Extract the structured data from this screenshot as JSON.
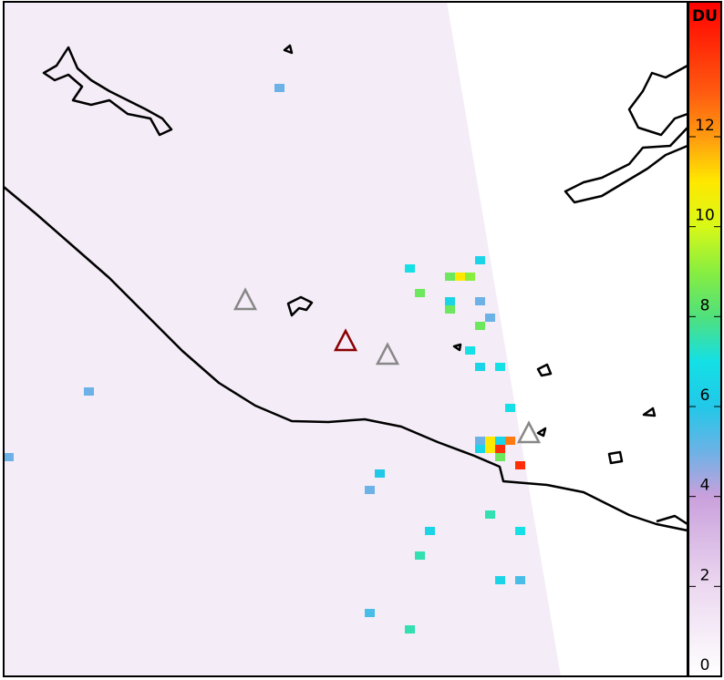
{
  "chart_data": {
    "type": "heatmap",
    "colorbar_label": "DU",
    "ylim": [
      0,
      15
    ],
    "yticks": [
      0,
      2,
      4,
      6,
      8,
      10,
      12
    ],
    "colorscale": [
      {
        "value": 0,
        "color": "#ffffff"
      },
      {
        "value": 2,
        "color": "#ecd8f0"
      },
      {
        "value": 4,
        "color": "#c9a0dc"
      },
      {
        "value": 5,
        "color": "#6cb2e6"
      },
      {
        "value": 6,
        "color": "#22c8e8"
      },
      {
        "value": 7,
        "color": "#14e0e6"
      },
      {
        "value": 8,
        "color": "#50e07c"
      },
      {
        "value": 9,
        "color": "#88ee40"
      },
      {
        "value": 10,
        "color": "#d8f818"
      },
      {
        "value": 11,
        "color": "#ffe800"
      },
      {
        "value": 12,
        "color": "#ff9a10"
      },
      {
        "value": 13,
        "color": "#ff5a10"
      },
      {
        "value": 15,
        "color": "#ff0000"
      }
    ],
    "cells": [
      {
        "col": 47,
        "row": 53,
        "value": 5
      },
      {
        "col": 48,
        "row": 53,
        "value": 11
      },
      {
        "col": 49,
        "row": 53,
        "value": 6.5
      },
      {
        "col": 50,
        "row": 53,
        "value": 12.5
      },
      {
        "col": 47,
        "row": 54,
        "value": 6.5
      },
      {
        "col": 48,
        "row": 54,
        "value": 11
      },
      {
        "col": 49,
        "row": 54,
        "value": 14
      },
      {
        "col": 49,
        "row": 55,
        "value": 8.5
      },
      {
        "col": 51,
        "row": 56,
        "value": 14
      },
      {
        "col": 40,
        "row": 32,
        "value": 7
      },
      {
        "col": 44,
        "row": 33,
        "value": 8.5
      },
      {
        "col": 45,
        "row": 33,
        "value": 11
      },
      {
        "col": 46,
        "row": 33,
        "value": 9
      },
      {
        "col": 47,
        "row": 31,
        "value": 6.5
      },
      {
        "col": 41,
        "row": 35,
        "value": 8.5
      },
      {
        "col": 44,
        "row": 36,
        "value": 6.5
      },
      {
        "col": 44,
        "row": 37,
        "value": 8.5
      },
      {
        "col": 47,
        "row": 36,
        "value": 5
      },
      {
        "col": 48,
        "row": 38,
        "value": 5
      },
      {
        "col": 47,
        "row": 39,
        "value": 8.5
      },
      {
        "col": 46,
        "row": 42,
        "value": 7
      },
      {
        "col": 47,
        "row": 44,
        "value": 6.5
      },
      {
        "col": 49,
        "row": 44,
        "value": 7
      },
      {
        "col": 50,
        "row": 49,
        "value": 7
      },
      {
        "col": 8,
        "row": 47,
        "value": 5
      },
      {
        "col": 0,
        "row": 55,
        "value": 5
      },
      {
        "col": 27,
        "row": 10,
        "value": 5
      },
      {
        "col": 41,
        "row": 67,
        "value": 7.5
      },
      {
        "col": 42,
        "row": 64,
        "value": 6.5
      },
      {
        "col": 40,
        "row": 76,
        "value": 7.5
      },
      {
        "col": 48,
        "row": 62,
        "value": 7.5
      },
      {
        "col": 51,
        "row": 64,
        "value": 7
      },
      {
        "col": 51,
        "row": 70,
        "value": 5.5
      },
      {
        "col": 49,
        "row": 70,
        "value": 6.5
      },
      {
        "col": 36,
        "row": 74,
        "value": 5.5
      },
      {
        "col": 37,
        "row": 57,
        "value": 6
      },
      {
        "col": 36,
        "row": 59,
        "value": 5
      }
    ]
  }
}
